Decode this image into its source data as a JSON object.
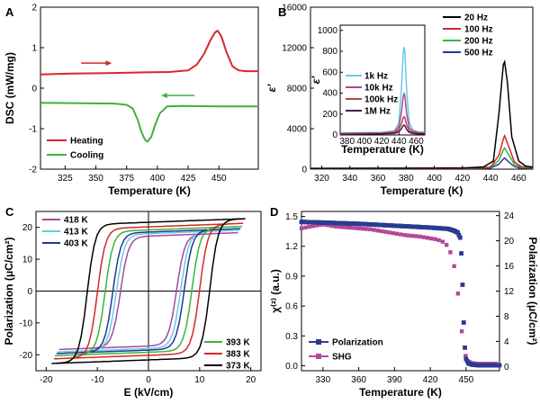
{
  "chart_data": [
    {
      "panel": "A",
      "type": "line",
      "xlabel": "Temperature (K)",
      "ylabel": "DSC (mW/mg)",
      "xlim": [
        305,
        482
      ],
      "ylim": [
        -2,
        2
      ],
      "xticks": [
        325,
        350,
        375,
        400,
        425,
        450
      ],
      "yticks": [
        -2,
        -1,
        0,
        1,
        2
      ],
      "legend": "bottom-left",
      "series": [
        {
          "name": "Heating",
          "color": "#d62728",
          "x": [
            305,
            330,
            360,
            390,
            410,
            425,
            432,
            438,
            443,
            447,
            449,
            452,
            456,
            461,
            466,
            472,
            482
          ],
          "y": [
            0.34,
            0.36,
            0.37,
            0.39,
            0.4,
            0.44,
            0.58,
            0.85,
            1.18,
            1.38,
            1.42,
            1.28,
            0.9,
            0.54,
            0.44,
            0.42,
            0.42
          ]
        },
        {
          "name": "Cooling",
          "color": "#3cb43c",
          "x": [
            305,
            340,
            365,
            375,
            380,
            384,
            387,
            390,
            392,
            395,
            398,
            402,
            408,
            420,
            450,
            482
          ],
          "y": [
            -0.36,
            -0.37,
            -0.38,
            -0.41,
            -0.5,
            -0.78,
            -1.08,
            -1.28,
            -1.32,
            -1.2,
            -0.92,
            -0.62,
            -0.45,
            -0.44,
            -0.45,
            -0.45
          ]
        }
      ]
    },
    {
      "panel": "B",
      "type": "line",
      "xlabel": "Temperature (K)",
      "ylabel": "ε′",
      "xlim": [
        312,
        470
      ],
      "ylim": [
        0,
        16000
      ],
      "xticks": [
        320,
        340,
        360,
        380,
        400,
        420,
        440,
        460
      ],
      "yticks": [
        0,
        4000,
        8000,
        12000,
        16000
      ],
      "legend": "top-right",
      "series": [
        {
          "name": "20 Hz",
          "color": "#000000",
          "x": [
            312,
            420,
            435,
            442,
            446,
            449,
            450,
            452,
            455,
            460,
            465,
            470
          ],
          "y": [
            80,
            120,
            220,
            800,
            5600,
            10300,
            10600,
            8500,
            3200,
            800,
            300,
            200
          ]
        },
        {
          "name": "100 Hz",
          "color": "#d62728",
          "x": [
            312,
            420,
            440,
            446,
            449,
            450,
            453,
            457,
            462,
            470
          ],
          "y": [
            60,
            80,
            200,
            1400,
            3000,
            3300,
            2200,
            700,
            250,
            150
          ]
        },
        {
          "name": "200 Hz",
          "color": "#3cb43c",
          "x": [
            312,
            420,
            440,
            446,
            449,
            450,
            453,
            457,
            462,
            470
          ],
          "y": [
            50,
            70,
            150,
            900,
            1900,
            2100,
            1400,
            450,
            180,
            120
          ]
        },
        {
          "name": "500 Hz",
          "color": "#1f3a93",
          "x": [
            312,
            420,
            440,
            446,
            449,
            450,
            453,
            457,
            462,
            470
          ],
          "y": [
            40,
            60,
            120,
            500,
            1000,
            1100,
            700,
            250,
            120,
            100
          ]
        }
      ],
      "inset": {
        "xlabel": "Temperature (K)",
        "ylabel": "ε′",
        "xlim": [
          372,
          470
        ],
        "ylim": [
          0,
          1050
        ],
        "xticks": [
          380,
          400,
          420,
          440,
          460
        ],
        "yticks": [
          0,
          200,
          400,
          600,
          800,
          1000
        ],
        "series": [
          {
            "name": "1k Hz",
            "color": "#6cc9e0",
            "x": [
              372,
              420,
              435,
              440,
              443,
              445,
              446,
              447,
              449,
              452,
              456,
              462,
              470
            ],
            "y": [
              20,
              25,
              40,
              120,
              450,
              780,
              840,
              800,
              420,
              120,
              50,
              30,
              25
            ]
          },
          {
            "name": "10k Hz",
            "color": "#a8479a",
            "x": [
              372,
              420,
              435,
              440,
              443,
              445,
              446,
              447,
              449,
              452,
              456,
              462,
              470
            ],
            "y": [
              15,
              20,
              30,
              80,
              220,
              370,
              395,
              370,
              200,
              70,
              35,
              25,
              20
            ]
          },
          {
            "name": "100k Hz",
            "color": "#b0474a",
            "x": [
              372,
              420,
              435,
              440,
              443,
              445,
              446,
              447,
              449,
              452,
              456,
              462,
              470
            ],
            "y": [
              10,
              15,
              25,
              50,
              110,
              165,
              175,
              165,
              95,
              40,
              25,
              18,
              15
            ]
          },
          {
            "name": "1M Hz",
            "color": "#4a1a4a",
            "x": [
              372,
              420,
              435,
              440,
              443,
              445,
              446,
              447,
              449,
              452,
              456,
              462,
              470
            ],
            "y": [
              5,
              10,
              15,
              30,
              60,
              90,
              95,
              88,
              50,
              25,
              15,
              10,
              10
            ]
          }
        ]
      }
    },
    {
      "panel": "C",
      "type": "line",
      "xlabel": "E (kV/cm)",
      "ylabel": "Polarization (μC/cm²)",
      "xlim": [
        -22,
        22
      ],
      "ylim": [
        -25,
        25
      ],
      "xticks": [
        -20,
        -10,
        0,
        10,
        20
      ],
      "yticks": [
        -20,
        -10,
        0,
        10,
        20
      ],
      "series": [
        {
          "name": "418 K",
          "color": "#a8479a",
          "ec": 5.5,
          "ps": 18,
          "emax": 17.5
        },
        {
          "name": "413 K",
          "color": "#6cc9e0",
          "ec": 6.3,
          "ps": 18.8,
          "emax": 17.8
        },
        {
          "name": "403 K",
          "color": "#1f3a93",
          "ec": 7.0,
          "ps": 19.3,
          "emax": 18.0
        },
        {
          "name": "393 K",
          "color": "#3cb43c",
          "ec": 8.5,
          "ps": 20,
          "emax": 18.3
        },
        {
          "name": "383 K",
          "color": "#d62728",
          "ec": 10.0,
          "ps": 21,
          "emax": 18.5
        },
        {
          "name": "373 K",
          "color": "#000000",
          "ec": 12.0,
          "ps": 22.5,
          "emax": 18.8
        }
      ]
    },
    {
      "panel": "D",
      "type": "scatter",
      "xlabel": "Temperature (K)",
      "ylabel": "χ⁽²⁾ (a.u.)",
      "ylabel_right": "Polarization (μC/cm²)",
      "xlim": [
        312,
        478
      ],
      "ylim": [
        -0.05,
        1.55
      ],
      "ylim_right": [
        -0.667,
        24.667
      ],
      "xticks": [
        330,
        360,
        390,
        420,
        450
      ],
      "yticks": [
        0.0,
        0.3,
        0.6,
        0.9,
        1.2,
        1.5
      ],
      "yticks_right": [
        0,
        4,
        8,
        12,
        16,
        20,
        24
      ],
      "legend": "bottom-left",
      "series": [
        {
          "name": "Polarization",
          "color": "#2a3b8f",
          "axis": "right",
          "x": [
            312,
            330,
            360,
            390,
            420,
            435,
            440,
            443,
            445,
            446,
            447,
            448,
            449,
            450,
            452,
            455,
            460,
            470,
            478
          ],
          "y": [
            23,
            22.9,
            22.7,
            22.4,
            22.1,
            21.9,
            21.6,
            21.3,
            20.5,
            18,
            13,
            7,
            3,
            1.2,
            0.5,
            0.3,
            0.2,
            0.2,
            0.2
          ]
        },
        {
          "name": "SHG",
          "color": "#b5479a",
          "axis": "left",
          "x": [
            312,
            320,
            330,
            340,
            350,
            360,
            370,
            380,
            390,
            400,
            410,
            420,
            425,
            430,
            435,
            438,
            441,
            443,
            445,
            447,
            449,
            451,
            454,
            460,
            470,
            478
          ],
          "y": [
            1.38,
            1.4,
            1.42,
            1.4,
            1.39,
            1.38,
            1.37,
            1.35,
            1.33,
            1.31,
            1.3,
            1.28,
            1.27,
            1.25,
            1.2,
            1.1,
            0.95,
            0.75,
            0.5,
            0.28,
            0.12,
            0.05,
            0.03,
            0.02,
            0.02,
            0.02
          ]
        }
      ]
    }
  ],
  "panel_letters": [
    "A",
    "B",
    "C",
    "D"
  ],
  "annotations": {
    "A": {
      "legend": [
        "Heating",
        "Cooling"
      ]
    },
    "B": {
      "legend": [
        "20 Hz",
        "100 Hz",
        "200 Hz",
        "500 Hz"
      ],
      "inset_legend": [
        "1k Hz",
        "10k Hz",
        "100k Hz",
        "1M Hz"
      ]
    },
    "C": {
      "legend_top": [
        "418 K",
        "413 K",
        "403 K"
      ],
      "legend_bottom": [
        "393 K",
        "383 K",
        "373 K"
      ]
    },
    "D": {
      "legend": [
        "Polarization",
        "SHG"
      ]
    }
  }
}
